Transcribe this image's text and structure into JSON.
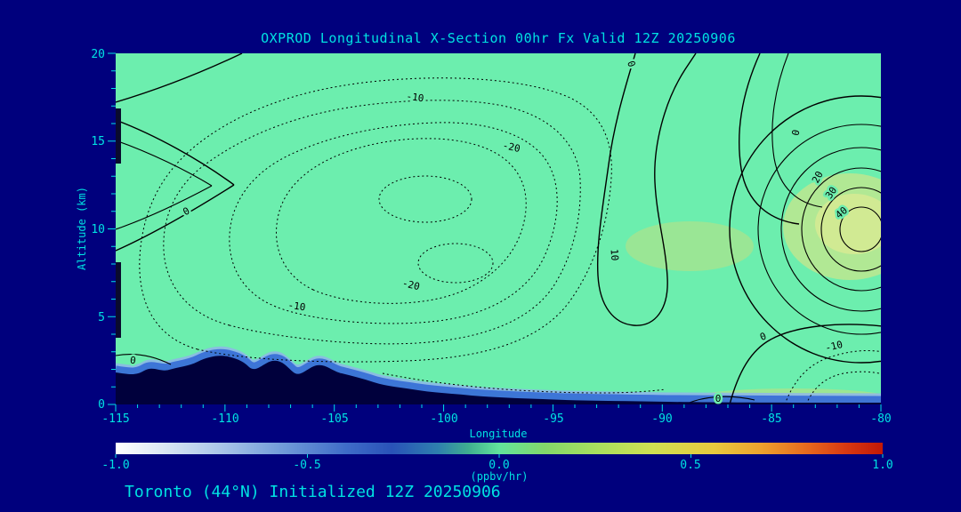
{
  "title": "OXPROD Longitudinal X-Section 00hr  Fx Valid 12Z 20250906",
  "footer": "Toronto (44°N) Initialized 12Z 20250906",
  "axes": {
    "y_label": "Altitude (km)",
    "x_label": "Longitude",
    "y_tick_labels": [
      "20",
      "15",
      "10",
      "5",
      "0"
    ],
    "x_tick_labels": [
      "-115",
      "-110",
      "-105",
      "-100",
      "-95",
      "-90",
      "-85",
      "-80"
    ]
  },
  "colorbar": {
    "tick_labels": [
      "-1.0",
      "-0.5",
      "0.0",
      "0.5",
      "1.0"
    ],
    "units_label": "(ppbv/hr)"
  },
  "contour_labels": [
    "0",
    "-10",
    "-20",
    "0",
    "10",
    "-20",
    "-10",
    "0",
    "0",
    "20",
    "30",
    "40",
    "0",
    "-10",
    "0"
  ],
  "colors": {
    "background": "#00007d",
    "plot_fill": "#6ceeae",
    "text": "#00e2e2",
    "contour": "#000000",
    "terrain": "#00003c"
  },
  "chart_data": {
    "type": "contour",
    "title": "OXPROD Longitudinal X-Section 00hr  Fx Valid 12Z 20250906",
    "subtitle": "Toronto (44°N) Initialized 12Z 20250906",
    "xlabel": "Longitude",
    "ylabel": "Altitude (km)",
    "xlim": [
      -115,
      -80
    ],
    "ylim": [
      0,
      20
    ],
    "x_ticks": [
      -115,
      -110,
      -105,
      -100,
      -95,
      -90,
      -85,
      -80
    ],
    "y_ticks": [
      0,
      5,
      10,
      15,
      20
    ],
    "units": "ppbv/hr",
    "colorbar_range": [
      -1.0,
      1.0
    ],
    "colorbar_ticks": [
      -1.0,
      -0.5,
      0.0,
      0.5,
      1.0
    ],
    "labeled_contour_levels": [
      -20,
      -10,
      0,
      10,
      20,
      30,
      40
    ],
    "negative_contour_style": "dotted",
    "positive_contour_style": "solid",
    "features": [
      {
        "name": "negative-minimum",
        "center_lon": -101,
        "center_alt_km": 10,
        "innermost_labeled_level": -20,
        "note": "broad dotted (negative) contour system over -108 to -93 longitude, 3-18 km"
      },
      {
        "name": "positive-maximum",
        "center_lon": -81,
        "center_alt_km": 10,
        "innermost_labeled_level": 40,
        "note": "tight solid concentric contours 0/10/20/30/40 near east edge with yellow-green shading"
      },
      {
        "name": "secondary-positive-patch",
        "center_lon": -89,
        "center_alt_km": 8.5,
        "note": "faint yellow-green shading"
      },
      {
        "name": "terrain",
        "note": "dark mountain silhouette along bottom, peaks ~2.5 km near -110 longitude, descending eastward to near 0 km, thin blue shading band just above terrain"
      }
    ]
  }
}
